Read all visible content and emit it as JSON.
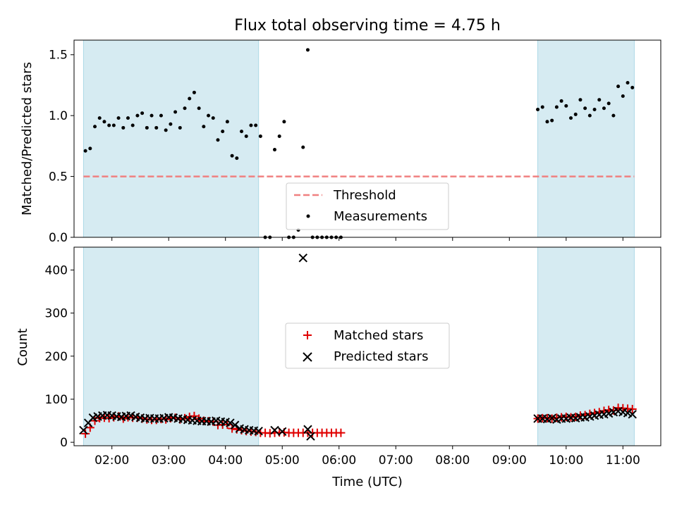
{
  "chart_data": [
    {
      "type": "scatter",
      "title": "Flux total observing time = 4.75 h",
      "xlabel": "",
      "ylabel": "Matched/Predicted stars",
      "xlim": [
        "01:20",
        "11:40"
      ],
      "ylim": [
        0,
        1.62
      ],
      "yticks": [
        "0.0",
        "0.5",
        "1.0",
        "1.5"
      ],
      "shaded_intervals": [
        [
          "01:30",
          "04:35"
        ],
        [
          "09:30",
          "11:12"
        ]
      ],
      "threshold": {
        "name": "Threshold",
        "value": 0.5,
        "x_range": [
          "01:30",
          "11:12"
        ],
        "color": "#f08080"
      },
      "legend": [
        "Threshold",
        "Measurements"
      ],
      "legend_position": "lower center",
      "series": [
        {
          "name": "Measurements",
          "x": [
            "01:32",
            "01:37",
            "01:42",
            "01:47",
            "01:52",
            "01:57",
            "02:02",
            "02:07",
            "02:12",
            "02:17",
            "02:22",
            "02:27",
            "02:32",
            "02:37",
            "02:42",
            "02:47",
            "02:52",
            "02:57",
            "03:02",
            "03:07",
            "03:12",
            "03:17",
            "03:22",
            "03:27",
            "03:32",
            "03:37",
            "03:42",
            "03:47",
            "03:52",
            "03:57",
            "04:02",
            "04:07",
            "04:12",
            "04:17",
            "04:22",
            "04:27",
            "04:32",
            "04:37",
            "04:42",
            "04:47",
            "04:52",
            "04:57",
            "05:02",
            "05:07",
            "05:12",
            "05:17",
            "05:22",
            "05:27",
            "05:32",
            "05:37",
            "05:42",
            "05:47",
            "05:52",
            "05:57",
            "06:02",
            "09:30",
            "09:35",
            "09:40",
            "09:45",
            "09:50",
            "09:55",
            "10:00",
            "10:05",
            "10:10",
            "10:15",
            "10:20",
            "10:25",
            "10:30",
            "10:35",
            "10:40",
            "10:45",
            "10:50",
            "10:55",
            "11:00",
            "11:05",
            "11:10"
          ],
          "y": [
            0.71,
            0.73,
            0.91,
            0.98,
            0.95,
            0.92,
            0.92,
            0.98,
            0.9,
            0.98,
            0.92,
            1.0,
            1.02,
            0.9,
            1.0,
            0.9,
            1.0,
            0.88,
            0.93,
            1.03,
            0.9,
            1.06,
            1.14,
            1.19,
            1.06,
            0.91,
            1.0,
            0.98,
            0.8,
            0.87,
            0.95,
            0.67,
            0.65,
            0.87,
            0.83,
            0.92,
            0.92,
            0.83,
            0.0,
            0.0,
            0.72,
            0.83,
            0.95,
            0.0,
            0.0,
            0.06,
            0.74,
            1.54,
            0.0,
            0.0,
            0.0,
            0.0,
            0.0,
            0.0,
            0.0,
            1.05,
            1.07,
            0.95,
            0.96,
            1.07,
            1.12,
            1.08,
            0.98,
            1.01,
            1.13,
            1.06,
            1.0,
            1.05,
            1.13,
            1.06,
            1.1,
            1.0,
            1.24,
            1.16,
            1.27,
            1.23
          ]
        }
      ]
    },
    {
      "type": "scatter",
      "title": "",
      "xlabel": "Time (UTC)",
      "ylabel": "Count",
      "xlim": [
        "01:20",
        "11:40"
      ],
      "ylim": [
        -8,
        453
      ],
      "yticks": [
        "0",
        "100",
        "200",
        "300",
        "400"
      ],
      "xticks": [
        "02:00",
        "03:00",
        "04:00",
        "05:00",
        "06:00",
        "07:00",
        "08:00",
        "09:00",
        "10:00",
        "11:00"
      ],
      "shaded_intervals": [
        [
          "01:30",
          "04:35"
        ],
        [
          "09:30",
          "11:12"
        ]
      ],
      "legend": [
        "Matched stars",
        "Predicted stars"
      ],
      "legend_position": "center",
      "series": [
        {
          "name": "Matched stars",
          "marker": "+",
          "color": "#e00000",
          "x": [
            "01:32",
            "01:37",
            "01:42",
            "01:47",
            "01:52",
            "01:57",
            "02:02",
            "02:07",
            "02:12",
            "02:17",
            "02:22",
            "02:27",
            "02:32",
            "02:37",
            "02:42",
            "02:47",
            "02:52",
            "02:57",
            "03:02",
            "03:07",
            "03:12",
            "03:17",
            "03:22",
            "03:27",
            "03:32",
            "03:37",
            "03:42",
            "03:47",
            "03:52",
            "03:57",
            "04:02",
            "04:07",
            "04:12",
            "04:17",
            "04:22",
            "04:27",
            "04:32",
            "04:37",
            "04:42",
            "04:47",
            "04:52",
            "04:57",
            "05:02",
            "05:07",
            "05:12",
            "05:17",
            "05:22",
            "05:27",
            "05:32",
            "05:37",
            "05:42",
            "05:47",
            "05:52",
            "05:57",
            "06:02",
            "09:30",
            "09:35",
            "09:40",
            "09:45",
            "09:50",
            "09:55",
            "10:00",
            "10:05",
            "10:10",
            "10:15",
            "10:20",
            "10:25",
            "10:30",
            "10:35",
            "10:40",
            "10:45",
            "10:50",
            "10:55",
            "11:00",
            "11:05",
            "11:10"
          ],
          "y": [
            20,
            34,
            50,
            56,
            57,
            56,
            58,
            60,
            55,
            58,
            57,
            57,
            55,
            53,
            52,
            52,
            54,
            53,
            56,
            57,
            53,
            56,
            59,
            61,
            55,
            50,
            49,
            48,
            40,
            41,
            41,
            32,
            30,
            28,
            26,
            25,
            24,
            22,
            22,
            21,
            22,
            23,
            23,
            22,
            22,
            22,
            22,
            22,
            22,
            22,
            22,
            22,
            22,
            22,
            22,
            55,
            56,
            56,
            55,
            57,
            58,
            59,
            58,
            59,
            62,
            63,
            66,
            68,
            70,
            73,
            75,
            74,
            80,
            79,
            78,
            77
          ]
        },
        {
          "name": "Predicted stars",
          "marker": "x",
          "color": "#000000",
          "x": [
            "01:30",
            "01:35",
            "01:40",
            "01:45",
            "01:50",
            "01:55",
            "02:00",
            "02:05",
            "02:10",
            "02:15",
            "02:20",
            "02:25",
            "02:30",
            "02:35",
            "02:40",
            "02:45",
            "02:50",
            "02:55",
            "03:00",
            "03:05",
            "03:10",
            "03:15",
            "03:20",
            "03:25",
            "03:30",
            "03:35",
            "03:40",
            "03:45",
            "03:50",
            "03:55",
            "04:00",
            "04:05",
            "04:10",
            "04:15",
            "04:20",
            "04:25",
            "04:30",
            "04:35",
            "04:52",
            "05:00",
            "05:22",
            "05:27",
            "05:30",
            "09:30",
            "09:35",
            "09:40",
            "09:45",
            "09:50",
            "09:55",
            "10:00",
            "10:05",
            "10:10",
            "10:15",
            "10:20",
            "10:25",
            "10:30",
            "10:35",
            "10:40",
            "10:45",
            "10:50",
            "10:55",
            "11:00",
            "11:05",
            "11:10"
          ],
          "y": [
            28,
            45,
            57,
            60,
            62,
            63,
            62,
            60,
            59,
            61,
            62,
            59,
            57,
            55,
            56,
            55,
            55,
            56,
            58,
            57,
            55,
            54,
            52,
            51,
            50,
            49,
            49,
            48,
            50,
            48,
            47,
            45,
            40,
            32,
            30,
            28,
            27,
            26,
            28,
            25,
            428,
            30,
            14,
            55,
            55,
            54,
            56,
            53,
            55,
            55,
            57,
            56,
            58,
            58,
            60,
            62,
            64,
            65,
            67,
            70,
            72,
            70,
            68,
            65
          ]
        }
      ]
    }
  ]
}
